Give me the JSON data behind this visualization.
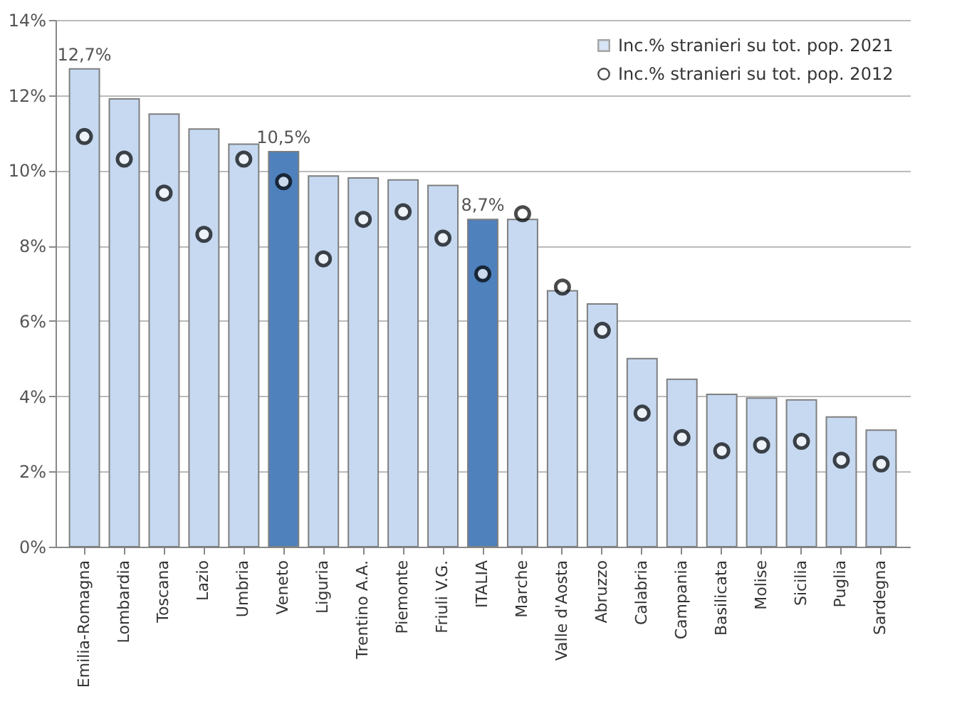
{
  "chart_data": {
    "type": "bar",
    "categories": [
      "Emilia-Romagna",
      "Lombardia",
      "Toscana",
      "Lazio",
      "Umbria",
      "Veneto",
      "Liguria",
      "Trentino A.A.",
      "Piemonte",
      "Friuli V.G.",
      "ITALIA",
      "Marche",
      "Valle d'Aosta",
      "Abruzzo",
      "Calabria",
      "Campania",
      "Basilicata",
      "Molise",
      "Sicilia",
      "Puglia",
      "Sardegna"
    ],
    "series": [
      {
        "name": "Inc.% stranieri su tot. pop. 2021",
        "type": "bar",
        "color": "#c6d9f1",
        "colors": [
          "#c6d9f1",
          "#c6d9f1",
          "#c6d9f1",
          "#c6d9f1",
          "#c6d9f1",
          "#4f81bd",
          "#c6d9f1",
          "#c6d9f1",
          "#c6d9f1",
          "#c6d9f1",
          "#4f81bd",
          "#c6d9f1",
          "#c6d9f1",
          "#c6d9f1",
          "#c6d9f1",
          "#c6d9f1",
          "#c6d9f1",
          "#c6d9f1",
          "#c6d9f1",
          "#c6d9f1",
          "#c6d9f1"
        ],
        "values": [
          12.7,
          11.9,
          11.5,
          11.1,
          10.7,
          10.5,
          9.85,
          9.8,
          9.75,
          9.6,
          8.7,
          8.7,
          6.8,
          6.45,
          5.0,
          4.45,
          4.05,
          3.95,
          3.9,
          3.45,
          3.1
        ],
        "value_labels": [
          "12,7%",
          null,
          null,
          null,
          null,
          "10,5%",
          null,
          null,
          null,
          null,
          "8,7%",
          null,
          null,
          null,
          null,
          null,
          null,
          null,
          null,
          null,
          null
        ]
      },
      {
        "name": "Inc.% stranieri su tot. pop. 2012",
        "type": "scatter",
        "color": "#ffffff",
        "marker": "circle",
        "values": [
          10.9,
          10.3,
          9.4,
          8.3,
          10.3,
          9.7,
          7.65,
          8.7,
          8.9,
          8.2,
          7.25,
          8.85,
          6.9,
          5.75,
          3.55,
          2.9,
          2.55,
          2.7,
          2.8,
          2.3,
          2.2
        ]
      }
    ],
    "ylim": [
      0,
      14
    ],
    "yticks": [
      {
        "value": 0,
        "label": "0%"
      },
      {
        "value": 2,
        "label": "2%"
      },
      {
        "value": 4,
        "label": "4%"
      },
      {
        "value": 6,
        "label": "6%"
      },
      {
        "value": 8,
        "label": "8%"
      },
      {
        "value": 10,
        "label": "10%"
      },
      {
        "value": 12,
        "label": "12%"
      },
      {
        "value": 14,
        "label": "14%"
      }
    ],
    "grid": "y",
    "legend": "top right"
  }
}
